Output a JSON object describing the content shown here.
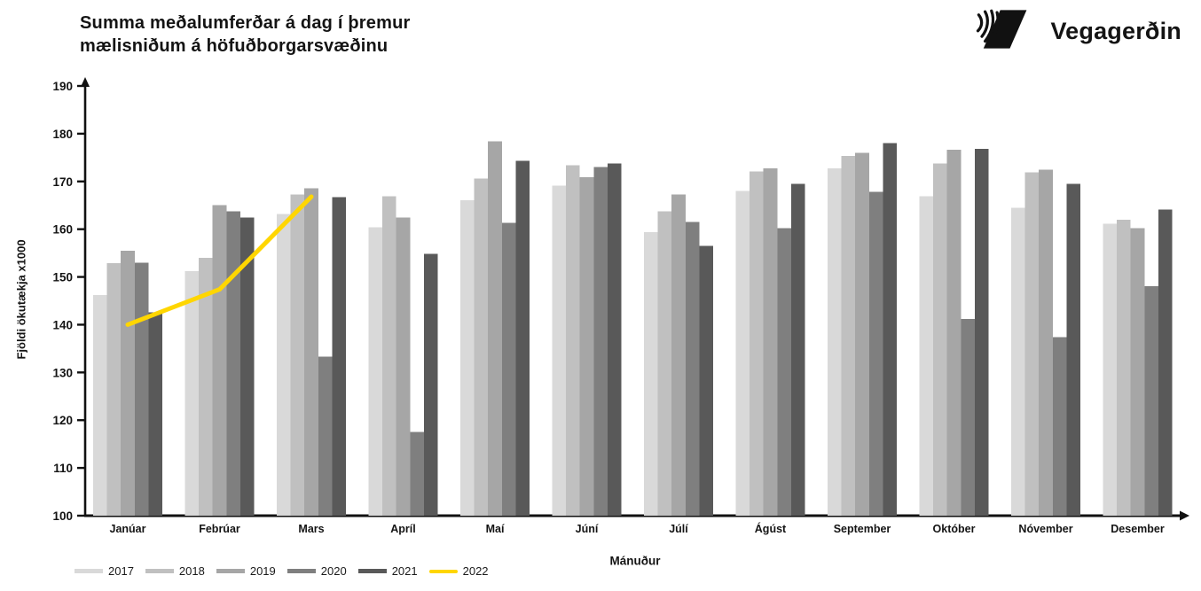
{
  "header": {
    "title_line1": "Summa meðalumferðar á dag í þremur",
    "title_line2": "mælisniðum á höfuðborgarsvæðinu",
    "logo_text": "Vegagerðin",
    "logo_icon": "vegagerdin-logo-icon"
  },
  "chart_data": {
    "type": "bar",
    "title": "Summa meðalumferðar á dag í þremur mælisniðum á höfuðborgarsvæðinu",
    "xlabel": "Mánuður",
    "ylabel": "Fjöldi ökutækja x1000",
    "ylim": [
      100,
      190
    ],
    "ytick_step": 10,
    "grid": false,
    "legend_position": "bottom-left",
    "axis_color": "#111111",
    "categories": [
      "Janúar",
      "Febrúar",
      "Mars",
      "Apríl",
      "Maí",
      "Júní",
      "Júlí",
      "Ágúst",
      "September",
      "Október",
      "Nóvember",
      "Desember"
    ],
    "series": [
      {
        "name": "2017",
        "type": "bar",
        "color": "#d9d9d9",
        "values": [
          146.2,
          151.2,
          163.2,
          160.4,
          166.1,
          169.1,
          159.4,
          168.0,
          172.7,
          166.9,
          164.5,
          161.1
        ]
      },
      {
        "name": "2018",
        "type": "bar",
        "color": "#c0c0c0",
        "values": [
          152.9,
          154.0,
          167.3,
          166.9,
          170.6,
          173.4,
          163.7,
          172.1,
          175.3,
          173.8,
          171.9,
          162.0
        ]
      },
      {
        "name": "2019",
        "type": "bar",
        "color": "#a6a6a6",
        "values": [
          155.5,
          165.0,
          168.6,
          162.4,
          178.4,
          170.9,
          167.3,
          172.7,
          176.0,
          176.6,
          172.5,
          160.2
        ]
      },
      {
        "name": "2020",
        "type": "bar",
        "color": "#7f7f7f",
        "values": [
          153.0,
          163.7,
          133.3,
          117.5,
          161.3,
          173.0,
          161.5,
          160.2,
          167.8,
          141.2,
          137.4,
          148.1
        ]
      },
      {
        "name": "2021",
        "type": "bar",
        "color": "#595959",
        "values": [
          142.6,
          162.4,
          166.7,
          154.8,
          174.3,
          173.8,
          156.5,
          169.5,
          178.0,
          176.8,
          169.5,
          164.1
        ]
      },
      {
        "name": "2022",
        "type": "line",
        "color": "#ffd600",
        "values": [
          140,
          147.4,
          166.8,
          null,
          null,
          null,
          null,
          null,
          null,
          null,
          null,
          null
        ]
      }
    ]
  }
}
